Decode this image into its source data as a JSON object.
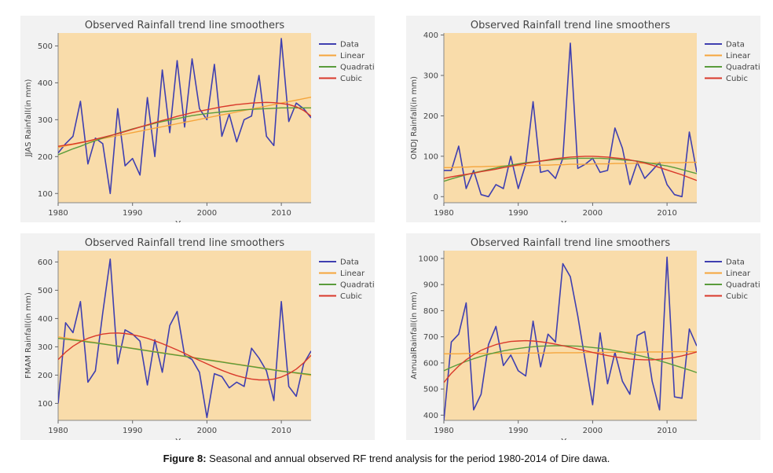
{
  "caption": {
    "label": "Figure 8:",
    "text": " Seasonal and annual observed RF trend analysis for the period 1980-2014 of Dire dawa."
  },
  "colors": {
    "plot_bg": "#f9dcaa",
    "panel_bg": "#f2f2f2",
    "data": "#3f3fb0",
    "linear": "#f5a53c",
    "quadratic": "#5a9c3c",
    "cubic": "#d9382b"
  },
  "chart_data": [
    {
      "type": "line",
      "title": "Observed Rainfall trend line smoothers",
      "xlabel": "Year",
      "ylabel": "JJAS Rainfall(in mm)",
      "xlim": [
        1980,
        2014
      ],
      "ylim": [
        75,
        535
      ],
      "xticks": [
        1980,
        1990,
        2000,
        2010
      ],
      "yticks": [
        100,
        200,
        300,
        400,
        500
      ],
      "grid": false,
      "legend": "right",
      "x": [
        1980,
        1981,
        1982,
        1983,
        1984,
        1985,
        1986,
        1987,
        1988,
        1989,
        1990,
        1991,
        1992,
        1993,
        1994,
        1995,
        1996,
        1997,
        1998,
        1999,
        2000,
        2001,
        2002,
        2003,
        2004,
        2005,
        2006,
        2007,
        2008,
        2009,
        2010,
        2011,
        2012,
        2013,
        2014
      ],
      "series": [
        {
          "name": "Data",
          "values": [
            210,
            235,
            255,
            350,
            180,
            250,
            235,
            100,
            330,
            175,
            195,
            150,
            360,
            200,
            435,
            265,
            460,
            280,
            465,
            330,
            300,
            450,
            255,
            315,
            240,
            300,
            310,
            420,
            255,
            230,
            520,
            295,
            345,
            330,
            305
          ]
        },
        {
          "name": "Linear",
          "values": [
            225,
            229,
            233,
            237,
            241,
            245,
            249,
            253,
            257,
            261,
            265,
            269,
            273,
            277,
            281,
            285,
            289,
            293,
            297,
            301,
            305,
            309,
            313,
            317,
            321,
            325,
            329,
            333,
            337,
            341,
            345,
            349,
            353,
            357,
            361
          ]
        },
        {
          "name": "Quadratic",
          "values": [
            205,
            213,
            221,
            228,
            236,
            243,
            250,
            256,
            263,
            269,
            275,
            280,
            285,
            290,
            295,
            299,
            303,
            307,
            311,
            314,
            317,
            319,
            321,
            323,
            325,
            327,
            328,
            329,
            330,
            331,
            332,
            332,
            332,
            332,
            332
          ]
        },
        {
          "name": "Cubic",
          "values": [
            228,
            231,
            234,
            238,
            242,
            247,
            252,
            257,
            262,
            268,
            274,
            280,
            286,
            292,
            298,
            303,
            309,
            314,
            319,
            323,
            327,
            331,
            335,
            338,
            341,
            343,
            345,
            346,
            347,
            346,
            344,
            341,
            335,
            325,
            310
          ]
        }
      ]
    },
    {
      "type": "line",
      "title": "Observed Rainfall trend line smoothers",
      "xlabel": "Year",
      "ylabel": "ONDJ Rainfall(in mm)",
      "xlim": [
        1980,
        2014
      ],
      "ylim": [
        -15,
        405
      ],
      "xticks": [
        1980,
        1990,
        2000,
        2010
      ],
      "yticks": [
        0,
        100,
        200,
        300,
        400
      ],
      "grid": false,
      "legend": "right",
      "x": [
        1980,
        1981,
        1982,
        1983,
        1984,
        1985,
        1986,
        1987,
        1988,
        1989,
        1990,
        1991,
        1992,
        1993,
        1994,
        1995,
        1996,
        1997,
        1998,
        1999,
        2000,
        2001,
        2002,
        2003,
        2004,
        2005,
        2006,
        2007,
        2008,
        2009,
        2010,
        2011,
        2012,
        2013,
        2014
      ],
      "series": [
        {
          "name": "Data",
          "values": [
            65,
            65,
            125,
            20,
            65,
            5,
            0,
            30,
            20,
            100,
            20,
            80,
            235,
            60,
            65,
            45,
            95,
            380,
            70,
            80,
            95,
            60,
            65,
            170,
            120,
            30,
            85,
            45,
            65,
            85,
            30,
            5,
            0,
            160,
            60
          ]
        },
        {
          "name": "Linear",
          "values": [
            72,
            72,
            73,
            73,
            74,
            74,
            75,
            75,
            76,
            76,
            77,
            77,
            77,
            78,
            78,
            79,
            79,
            80,
            80,
            80,
            81,
            81,
            81,
            82,
            82,
            82,
            83,
            83,
            83,
            84,
            84,
            84,
            84,
            85,
            85
          ]
        },
        {
          "name": "Quadratic",
          "values": [
            38,
            44,
            49,
            54,
            59,
            63,
            67,
            71,
            75,
            78,
            81,
            84,
            86,
            88,
            90,
            92,
            93,
            94,
            95,
            95,
            95,
            95,
            94,
            93,
            91,
            90,
            88,
            85,
            82,
            79,
            76,
            72,
            67,
            62,
            57
          ]
        },
        {
          "name": "Cubic",
          "values": [
            45,
            49,
            52,
            55,
            58,
            62,
            65,
            68,
            72,
            75,
            79,
            82,
            85,
            88,
            91,
            94,
            96,
            98,
            99,
            100,
            100,
            99,
            98,
            96,
            94,
            91,
            87,
            83,
            78,
            72,
            66,
            60,
            54,
            47,
            40
          ]
        }
      ]
    },
    {
      "type": "line",
      "title": "Observed Rainfall trend line smoothers",
      "xlabel": "Year",
      "ylabel": "FMAM Rainfall(in mm)",
      "xlim": [
        1980,
        2014
      ],
      "ylim": [
        40,
        640
      ],
      "xticks": [
        1980,
        1990,
        2000,
        2010
      ],
      "yticks": [
        100,
        200,
        300,
        400,
        500,
        600
      ],
      "grid": false,
      "legend": "right",
      "x": [
        1980,
        1981,
        1982,
        1983,
        1984,
        1985,
        1986,
        1987,
        1988,
        1989,
        1990,
        1991,
        1992,
        1993,
        1994,
        1995,
        1996,
        1997,
        1998,
        1999,
        2000,
        2001,
        2002,
        2003,
        2004,
        2005,
        2006,
        2007,
        2008,
        2009,
        2010,
        2011,
        2012,
        2013,
        2014
      ],
      "series": [
        {
          "name": "Data",
          "values": [
            100,
            385,
            350,
            460,
            175,
            215,
            420,
            610,
            240,
            360,
            345,
            320,
            165,
            325,
            210,
            375,
            425,
            270,
            255,
            210,
            50,
            205,
            195,
            155,
            175,
            160,
            295,
            260,
            215,
            110,
            460,
            160,
            125,
            240,
            285
          ]
        },
        {
          "name": "Linear",
          "values": [
            335,
            331,
            327,
            323,
            319,
            315,
            311,
            307,
            303,
            299,
            295,
            291,
            287,
            283,
            279,
            275,
            271,
            267,
            263,
            259,
            255,
            251,
            247,
            243,
            239,
            235,
            231,
            227,
            223,
            219,
            215,
            211,
            207,
            203,
            199
          ]
        },
        {
          "name": "Quadratic",
          "values": [
            330,
            327,
            324,
            321,
            317,
            314,
            310,
            306,
            302,
            298,
            294,
            290,
            286,
            282,
            278,
            274,
            270,
            266,
            262,
            258,
            254,
            250,
            246,
            242,
            238,
            234,
            230,
            226,
            222,
            218,
            214,
            211,
            208,
            205,
            202
          ]
        },
        {
          "name": "Cubic",
          "values": [
            255,
            281,
            302,
            318,
            330,
            339,
            345,
            348,
            349,
            347,
            343,
            337,
            330,
            321,
            311,
            300,
            289,
            277,
            264,
            252,
            240,
            228,
            217,
            207,
            198,
            191,
            186,
            183,
            183,
            186,
            193,
            205,
            221,
            243,
            270
          ]
        }
      ]
    },
    {
      "type": "line",
      "title": "Observed Rainfall trend line smoothers",
      "xlabel": "Year",
      "ylabel": "AnnualRainfall(in mm)",
      "xlim": [
        1980,
        2014
      ],
      "ylim": [
        380,
        1030
      ],
      "xticks": [
        1980,
        1990,
        2000,
        2010
      ],
      "yticks": [
        400,
        500,
        600,
        700,
        800,
        900,
        1000
      ],
      "grid": false,
      "legend": "right",
      "x": [
        1980,
        1981,
        1982,
        1983,
        1984,
        1985,
        1986,
        1987,
        1988,
        1989,
        1990,
        1991,
        1992,
        1993,
        1994,
        1995,
        1996,
        1997,
        1998,
        1999,
        2000,
        2001,
        2002,
        2003,
        2004,
        2005,
        2006,
        2007,
        2008,
        2009,
        2010,
        2011,
        2012,
        2013,
        2014
      ],
      "series": [
        {
          "name": "Data",
          "values": [
            380,
            680,
            710,
            830,
            420,
            480,
            670,
            740,
            590,
            630,
            570,
            550,
            760,
            585,
            710,
            680,
            980,
            930,
            780,
            610,
            440,
            715,
            520,
            640,
            530,
            480,
            705,
            720,
            530,
            420,
            1005,
            470,
            465,
            730,
            665
          ]
        },
        {
          "name": "Linear",
          "values": [
            635,
            635,
            635,
            636,
            636,
            636,
            636,
            637,
            637,
            637,
            637,
            638,
            638,
            638,
            638,
            639,
            639,
            639,
            639,
            640,
            640,
            640,
            640,
            641,
            641,
            641,
            641,
            642,
            642,
            642,
            642,
            643,
            643,
            643,
            643
          ]
        },
        {
          "name": "Quadratic",
          "values": [
            570,
            583,
            595,
            606,
            616,
            625,
            633,
            640,
            646,
            651,
            655,
            659,
            662,
            664,
            665,
            666,
            666,
            665,
            664,
            662,
            659,
            656,
            652,
            647,
            642,
            636,
            630,
            623,
            616,
            608,
            600,
            591,
            582,
            573,
            563
          ]
        },
        {
          "name": "Cubic",
          "values": [
            525,
            560,
            588,
            612,
            632,
            648,
            660,
            670,
            677,
            682,
            684,
            685,
            684,
            681,
            677,
            672,
            666,
            660,
            653,
            647,
            640,
            634,
            628,
            623,
            619,
            615,
            613,
            612,
            612,
            614,
            617,
            621,
            627,
            634,
            642
          ]
        }
      ]
    }
  ]
}
